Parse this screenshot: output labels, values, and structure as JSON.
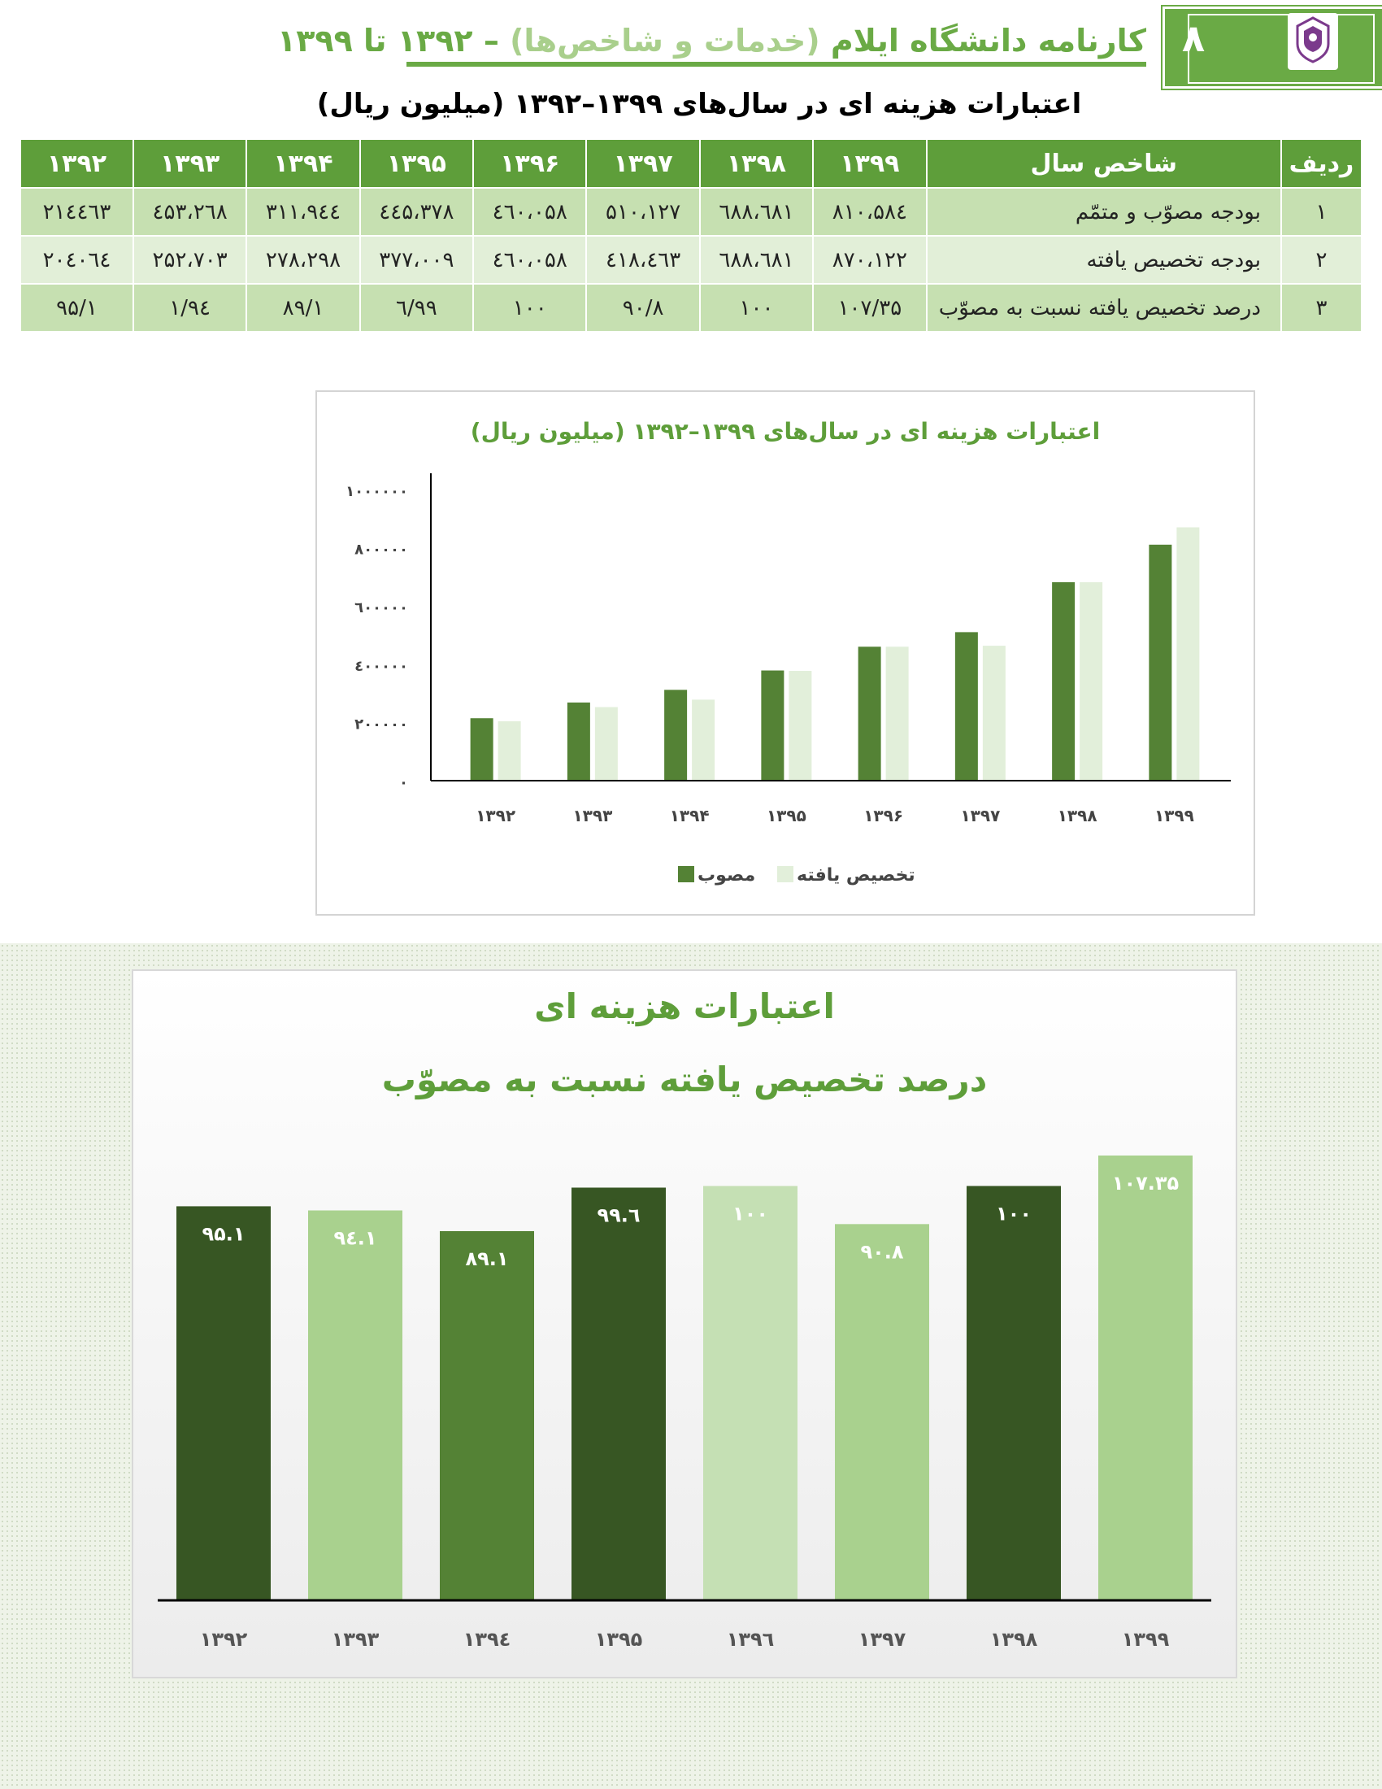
{
  "header": {
    "page_number": "۸",
    "title_main": "کارنامه دانشگاه ایلام ",
    "title_paren": "(خدمات و شاخص‌ها)",
    "title_years": " – ۱۳۹۲ تا ۱۳۹۹",
    "logo_icon": "university-seal-icon",
    "accent_color": "#6aaa45"
  },
  "table": {
    "title": "اعتبارات هزینه ای در سال‌های ۱۳۹۹–۱۳۹۲ (میلیون ریال)",
    "headers": [
      "ردیف",
      "شاخص سال",
      "۱۳۹۹",
      "۱۳۹۸",
      "۱۳۹۷",
      "۱۳۹۶",
      "۱۳۹۵",
      "۱۳۹۴",
      "۱۳۹۳",
      "۱۳۹۲"
    ],
    "rows": [
      [
        "۱",
        "بودجه مصوّب و متمّم",
        "۸۱۰،۵۸٤",
        "٦۸۱،٦۸۸",
        "۵۱۰،۱۲۷",
        "٤٦۰،۰۵۸",
        "۳۷۸،٤٤۵",
        "۳۱۱،۹٤٤",
        "۲٦۸،٤۵۳",
        "۲۱٤٤٦۳"
      ],
      [
        "۲",
        "بودجه تخصیص یافته",
        "۸۷۰،۱۲۲",
        "٦۸۱،٦۸۸",
        "٤٦۳،٤۱۸",
        "٤٦۰،۰۵۸",
        "۳۷۷،۰۰۹",
        "۲۷۸،۲۹۸",
        "۲۵۲،۷۰۳",
        "۲۰٤۰٦٤"
      ],
      [
        "۳",
        "درصد تخصیص یافته نسبت به مصوّب",
        "۱۰۷/۳۵",
        "۱۰۰",
        "۹۰/۸",
        "۱۰۰",
        "۹۹/٦",
        "۸۹/۱",
        "۹٤/۱",
        "۹۵/۱"
      ]
    ]
  },
  "chart_data": [
    {
      "type": "bar",
      "title": "اعتبارات هزینه ای در سال‌های ۱۳۹۹–۱۳۹۲ (میلیون ریال)",
      "categories": [
        "۱۳۹۲",
        "۱۳۹۳",
        "۱۳۹۴",
        "۱۳۹۵",
        "۱۳۹۶",
        "۱۳۹۷",
        "۱۳۹۸",
        "۱۳۹۹"
      ],
      "series": [
        {
          "name": "مصوب",
          "color": "#548235",
          "values": [
            214463,
            268453,
            311944,
            378445,
            460058,
            510127,
            681688,
            810584
          ]
        },
        {
          "name": "تخصیص یافته",
          "color": "#e2efda",
          "values": [
            204064,
            252703,
            278298,
            377009,
            460058,
            463418,
            681688,
            870122
          ]
        }
      ],
      "yticks": [
        "۰",
        "۲۰۰۰۰۰",
        "٤۰۰۰۰۰",
        "٦۰۰۰۰۰",
        "۸۰۰۰۰۰",
        "۱۰۰۰۰۰۰"
      ],
      "ylim": [
        0,
        1000000
      ],
      "legend": "bottom",
      "grid": false
    },
    {
      "type": "bar",
      "title_line1": "اعتبارات هزینه ای",
      "title_line2": "درصد تخصیص یافته نسبت به مصوّب",
      "categories": [
        "۱۳۹۲",
        "۱۳۹۳",
        "۱۳۹٤",
        "۱۳۹۵",
        "۱۳۹٦",
        "۱۳۹۷",
        "۱۳۹۸",
        "۱۳۹۹"
      ],
      "values": [
        95.1,
        94.1,
        89.1,
        99.6,
        100,
        90.8,
        100,
        107.35
      ],
      "data_labels": [
        "۹۵.۱",
        "۹٤.۱",
        "۸۹.۱",
        "۹۹.٦",
        "۱۰۰",
        "۹۰.۸",
        "۱۰۰",
        "۱۰۷.۳۵"
      ],
      "bar_colors": [
        "#375623",
        "#a9d18e",
        "#548235",
        "#375623",
        "#c5e0b4",
        "#a9d18e",
        "#375623",
        "#a9d18e"
      ],
      "label_colors": [
        "#ffffff",
        "#ffffff",
        "#ffffff",
        "#ffffff",
        "#ffffff",
        "#ffffff",
        "#ffffff",
        "#ffffff"
      ],
      "ylim": [
        0,
        115
      ],
      "grid": false
    }
  ]
}
